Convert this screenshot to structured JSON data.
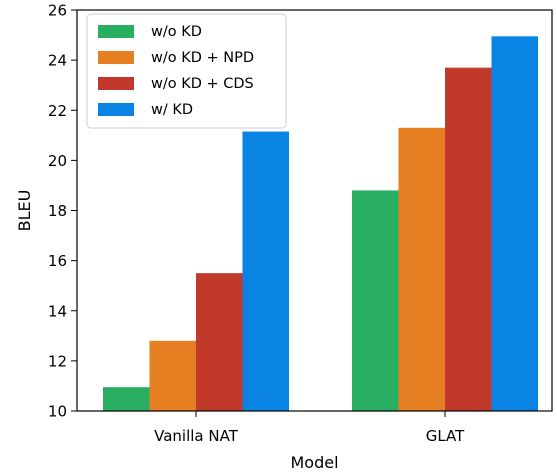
{
  "chart_data": {
    "type": "bar",
    "title": "",
    "xlabel": "Model",
    "ylabel": "BLEU",
    "categories": [
      "Vanilla NAT",
      "GLAT"
    ],
    "series": [
      {
        "name": "w/o KD",
        "values": [
          10.95,
          18.8
        ],
        "color": "#27ae60"
      },
      {
        "name": "w/o KD + NPD",
        "values": [
          12.8,
          21.3
        ],
        "color": "#e67e22"
      },
      {
        "name": "w/o KD + CDS",
        "values": [
          15.5,
          23.7
        ],
        "color": "#c0392b"
      },
      {
        "name": "w/ KD",
        "values": [
          21.15,
          24.95
        ],
        "color": "#0a84e3"
      }
    ],
    "ylim": [
      10,
      26
    ],
    "yticks": [
      10,
      12,
      14,
      16,
      18,
      20,
      22,
      24,
      26
    ],
    "grid": false,
    "legend_position": "top-left"
  }
}
